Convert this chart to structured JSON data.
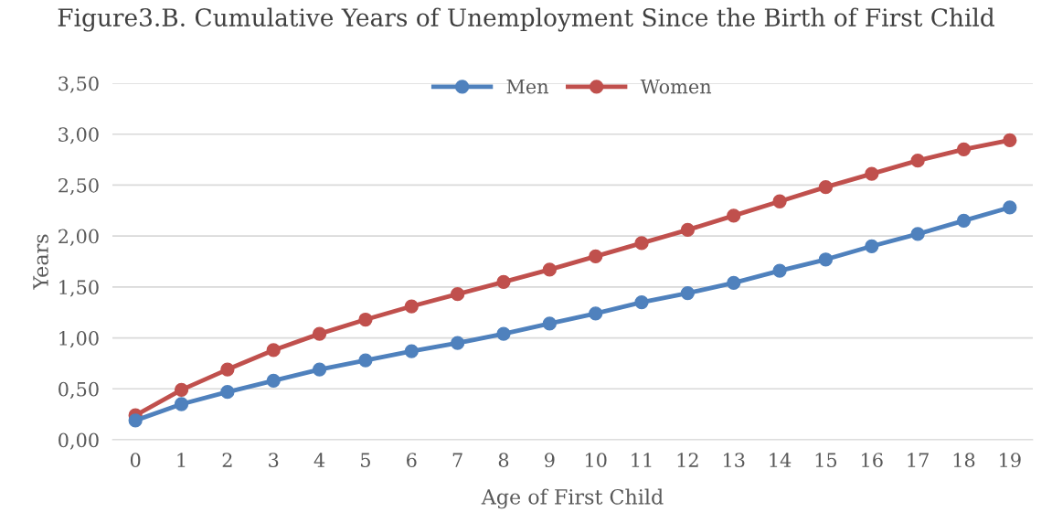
{
  "chart_data": {
    "type": "line",
    "title": "Figure3.B. Cumulative Years of Unemployment Since the Birth of First Child",
    "xlabel": "Age of First Child",
    "ylabel": "Years",
    "categories": [
      "0",
      "1",
      "2",
      "3",
      "4",
      "5",
      "6",
      "7",
      "8",
      "9",
      "10",
      "11",
      "12",
      "13",
      "14",
      "15",
      "16",
      "17",
      "18",
      "19"
    ],
    "series": [
      {
        "name": "Men",
        "color": "#4f81bd",
        "values": [
          0.19,
          0.35,
          0.47,
          0.58,
          0.69,
          0.78,
          0.87,
          0.95,
          1.04,
          1.14,
          1.24,
          1.35,
          1.44,
          1.54,
          1.66,
          1.77,
          1.9,
          2.02,
          2.15,
          2.28
        ]
      },
      {
        "name": "Women",
        "color": "#c0504d",
        "values": [
          0.24,
          0.49,
          0.69,
          0.88,
          1.04,
          1.18,
          1.31,
          1.43,
          1.55,
          1.67,
          1.8,
          1.93,
          2.06,
          2.2,
          2.34,
          2.48,
          2.61,
          2.74,
          2.85,
          2.94
        ]
      }
    ],
    "ylim": [
      0,
      3.5
    ],
    "yticks": [
      {
        "value": 0,
        "label": "0,00"
      },
      {
        "value": 0.5,
        "label": "0,50"
      },
      {
        "value": 1,
        "label": "1,00"
      },
      {
        "value": 1.5,
        "label": "1,50"
      },
      {
        "value": 2,
        "label": "2,00"
      },
      {
        "value": 2.5,
        "label": "2,50"
      },
      {
        "value": 3,
        "label": "3,00"
      },
      {
        "value": 3.5,
        "label": "3,50"
      }
    ],
    "grid": "y",
    "legend": "top",
    "marker": "circle",
    "line_style": "solid"
  }
}
